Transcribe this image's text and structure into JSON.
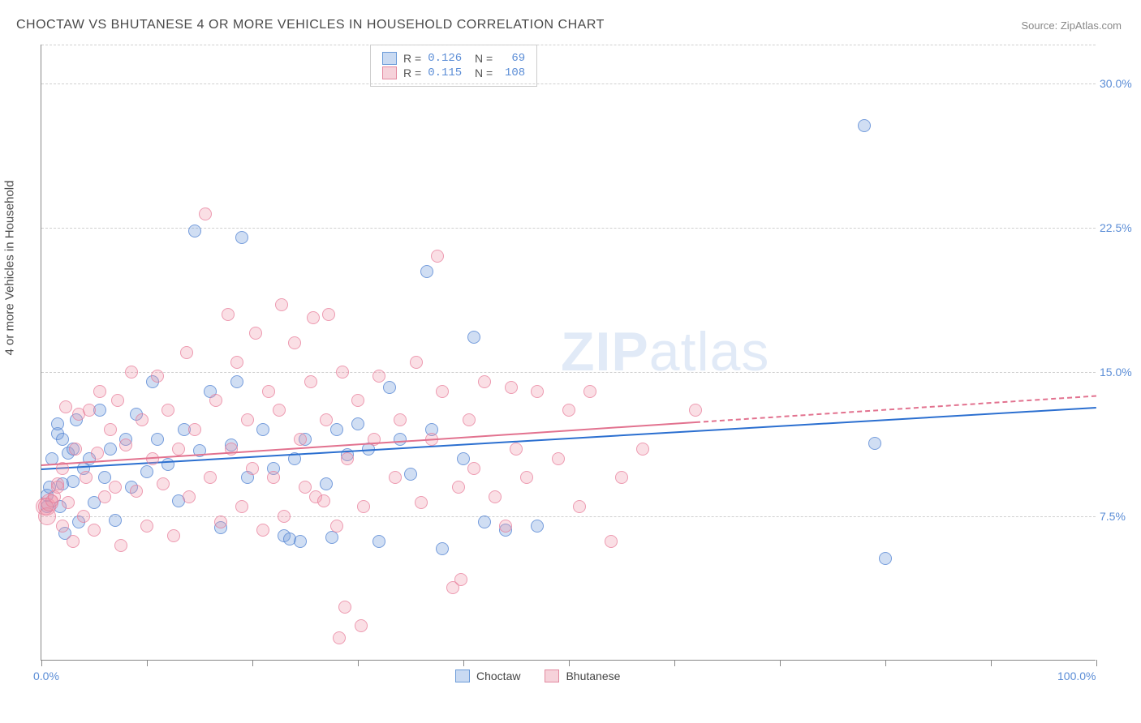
{
  "title": "CHOCTAW VS BHUTANESE 4 OR MORE VEHICLES IN HOUSEHOLD CORRELATION CHART",
  "source": "Source: ZipAtlas.com",
  "y_axis_label": "4 or more Vehicles in Household",
  "watermark": {
    "pre": "ZIP",
    "post": "atlas"
  },
  "chart": {
    "type": "scatter",
    "xlim": [
      0,
      100
    ],
    "ylim": [
      0,
      32
    ],
    "x_ticks": [
      0,
      10,
      20,
      30,
      40,
      50,
      60,
      70,
      80,
      90,
      100
    ],
    "x_tick_labels": [
      {
        "pos": 0,
        "label": "0.0%"
      },
      {
        "pos": 100,
        "label": "100.0%"
      }
    ],
    "y_gridlines": [
      7.5,
      15.0,
      22.5,
      30.0,
      32.0
    ],
    "y_tick_labels": [
      {
        "pos": 7.5,
        "label": "7.5%"
      },
      {
        "pos": 15.0,
        "label": "15.0%"
      },
      {
        "pos": 22.5,
        "label": "22.5%"
      },
      {
        "pos": 30.0,
        "label": "30.0%"
      }
    ],
    "background_color": "#ffffff",
    "grid_color": "#d0d0d0",
    "axis_color": "#888888",
    "label_color": "#5b8dd6",
    "marker_radius": 8,
    "series": [
      {
        "name": "Choctaw",
        "color_fill": "rgba(120,160,220,0.35)",
        "color_stroke": "rgba(80,130,210,0.7)",
        "legend_swatch_bg": "#c9daf2",
        "legend_swatch_border": "#6a9ad8",
        "r": "0.126",
        "n": "69",
        "trend": {
          "x0": 0,
          "y0": 10.0,
          "x1": 100,
          "y1": 13.2,
          "x_data_end": 100,
          "color": "#2b6fd0"
        },
        "points": [
          [
            0.5,
            8.0
          ],
          [
            0.5,
            8.6
          ],
          [
            0.8,
            9.0
          ],
          [
            1.0,
            10.5
          ],
          [
            1.5,
            11.8
          ],
          [
            1.5,
            12.3
          ],
          [
            1.8,
            8.0
          ],
          [
            2.0,
            9.2
          ],
          [
            2.0,
            11.5
          ],
          [
            2.2,
            6.6
          ],
          [
            2.5,
            10.8
          ],
          [
            3.0,
            9.3
          ],
          [
            3.0,
            11.0
          ],
          [
            3.3,
            12.5
          ],
          [
            3.5,
            7.2
          ],
          [
            4.0,
            10.0
          ],
          [
            4.5,
            10.5
          ],
          [
            5.0,
            8.2
          ],
          [
            5.5,
            13.0
          ],
          [
            6.0,
            9.5
          ],
          [
            6.5,
            11.0
          ],
          [
            7.0,
            7.3
          ],
          [
            8.0,
            11.5
          ],
          [
            8.5,
            9.0
          ],
          [
            9.0,
            12.8
          ],
          [
            10.0,
            9.8
          ],
          [
            10.5,
            14.5
          ],
          [
            11.0,
            11.5
          ],
          [
            12.0,
            10.2
          ],
          [
            13.0,
            8.3
          ],
          [
            13.5,
            12.0
          ],
          [
            14.5,
            22.3
          ],
          [
            15.0,
            10.9
          ],
          [
            16.0,
            14.0
          ],
          [
            17.0,
            6.9
          ],
          [
            18.0,
            11.2
          ],
          [
            18.5,
            14.5
          ],
          [
            19.0,
            22.0
          ],
          [
            19.5,
            9.5
          ],
          [
            21.0,
            12.0
          ],
          [
            22.0,
            10.0
          ],
          [
            23.0,
            6.5
          ],
          [
            23.5,
            6.3
          ],
          [
            24.0,
            10.5
          ],
          [
            24.5,
            6.2
          ],
          [
            25.0,
            11.5
          ],
          [
            27.0,
            9.2
          ],
          [
            27.5,
            6.4
          ],
          [
            28.0,
            12.0
          ],
          [
            29.0,
            10.7
          ],
          [
            30.0,
            12.3
          ],
          [
            31.0,
            11.0
          ],
          [
            32.0,
            6.2
          ],
          [
            33.0,
            14.2
          ],
          [
            34.0,
            11.5
          ],
          [
            35.0,
            9.7
          ],
          [
            36.5,
            20.2
          ],
          [
            37.0,
            12.0
          ],
          [
            38.0,
            5.8
          ],
          [
            40.0,
            10.5
          ],
          [
            41.0,
            16.8
          ],
          [
            42.0,
            7.2
          ],
          [
            44.0,
            6.8
          ],
          [
            47.0,
            7.0
          ],
          [
            78.0,
            27.8
          ],
          [
            79.0,
            11.3
          ],
          [
            80.0,
            5.3
          ]
        ]
      },
      {
        "name": "Bhutanese",
        "color_fill": "rgba(240,150,170,0.3)",
        "color_stroke": "rgba(230,120,150,0.65)",
        "legend_swatch_bg": "#f6d2da",
        "legend_swatch_border": "#e38aa0",
        "r": "0.115",
        "n": "108",
        "trend": {
          "x0": 0,
          "y0": 10.2,
          "x1": 100,
          "y1": 13.8,
          "x_data_end": 62,
          "color": "#e2728f"
        },
        "points": [
          [
            0.3,
            8.0
          ],
          [
            0.5,
            8.0
          ],
          [
            0.5,
            7.5
          ],
          [
            0.8,
            8.2
          ],
          [
            1.0,
            8.3
          ],
          [
            1.2,
            8.5
          ],
          [
            1.5,
            9.2
          ],
          [
            1.5,
            9.0
          ],
          [
            2.0,
            7.0
          ],
          [
            2.0,
            10.0
          ],
          [
            2.3,
            13.2
          ],
          [
            2.5,
            8.2
          ],
          [
            3.0,
            6.2
          ],
          [
            3.2,
            11.0
          ],
          [
            3.5,
            12.8
          ],
          [
            4.0,
            7.5
          ],
          [
            4.2,
            9.5
          ],
          [
            4.5,
            13.0
          ],
          [
            5.0,
            6.8
          ],
          [
            5.3,
            10.8
          ],
          [
            5.5,
            14.0
          ],
          [
            6.0,
            8.5
          ],
          [
            6.5,
            12.0
          ],
          [
            7.0,
            9.0
          ],
          [
            7.2,
            13.5
          ],
          [
            7.5,
            6.0
          ],
          [
            8.0,
            11.2
          ],
          [
            8.5,
            15.0
          ],
          [
            9.0,
            8.8
          ],
          [
            9.5,
            12.5
          ],
          [
            10.0,
            7.0
          ],
          [
            10.5,
            10.5
          ],
          [
            11.0,
            14.8
          ],
          [
            11.5,
            9.2
          ],
          [
            12.0,
            13.0
          ],
          [
            12.5,
            6.5
          ],
          [
            13.0,
            11.0
          ],
          [
            13.8,
            16.0
          ],
          [
            14.0,
            8.5
          ],
          [
            14.5,
            12.0
          ],
          [
            15.5,
            23.2
          ],
          [
            16.0,
            9.5
          ],
          [
            16.5,
            13.5
          ],
          [
            17.0,
            7.2
          ],
          [
            17.7,
            18.0
          ],
          [
            18.0,
            11.0
          ],
          [
            18.5,
            15.5
          ],
          [
            19.0,
            8.0
          ],
          [
            19.5,
            12.5
          ],
          [
            20.0,
            10.0
          ],
          [
            20.3,
            17.0
          ],
          [
            21.0,
            6.8
          ],
          [
            21.5,
            14.0
          ],
          [
            22.0,
            9.5
          ],
          [
            22.5,
            13.0
          ],
          [
            22.8,
            18.5
          ],
          [
            23.0,
            7.5
          ],
          [
            24.0,
            16.5
          ],
          [
            24.5,
            11.5
          ],
          [
            25.0,
            9.0
          ],
          [
            25.5,
            14.5
          ],
          [
            25.8,
            17.8
          ],
          [
            26.0,
            8.5
          ],
          [
            26.8,
            8.3
          ],
          [
            27.0,
            12.5
          ],
          [
            27.2,
            18.0
          ],
          [
            28.0,
            7.0
          ],
          [
            28.2,
            1.2
          ],
          [
            28.5,
            15.0
          ],
          [
            28.8,
            2.8
          ],
          [
            29.0,
            10.5
          ],
          [
            30.0,
            13.5
          ],
          [
            30.3,
            1.8
          ],
          [
            30.5,
            8.0
          ],
          [
            31.5,
            11.5
          ],
          [
            32.0,
            14.8
          ],
          [
            33.5,
            9.5
          ],
          [
            34.0,
            12.5
          ],
          [
            35.5,
            15.5
          ],
          [
            36.0,
            8.2
          ],
          [
            37.0,
            11.5
          ],
          [
            37.5,
            21.0
          ],
          [
            38.0,
            14.0
          ],
          [
            39.0,
            3.8
          ],
          [
            39.5,
            9.0
          ],
          [
            39.8,
            4.2
          ],
          [
            40.5,
            12.5
          ],
          [
            41.0,
            10.0
          ],
          [
            42.0,
            14.5
          ],
          [
            43.0,
            8.5
          ],
          [
            44.0,
            7.0
          ],
          [
            44.5,
            14.2
          ],
          [
            45.0,
            11.0
          ],
          [
            46.0,
            9.5
          ],
          [
            47.0,
            14.0
          ],
          [
            49.0,
            10.5
          ],
          [
            50.0,
            13.0
          ],
          [
            51.0,
            8.0
          ],
          [
            52.0,
            14.0
          ],
          [
            54.0,
            6.2
          ],
          [
            55.0,
            9.5
          ],
          [
            57.0,
            11.0
          ],
          [
            62.0,
            13.0
          ]
        ]
      }
    ],
    "legend_bottom": [
      {
        "label": "Choctaw",
        "bg": "#c9daf2",
        "border": "#6a9ad8"
      },
      {
        "label": "Bhutanese",
        "bg": "#f6d2da",
        "border": "#e38aa0"
      }
    ]
  }
}
